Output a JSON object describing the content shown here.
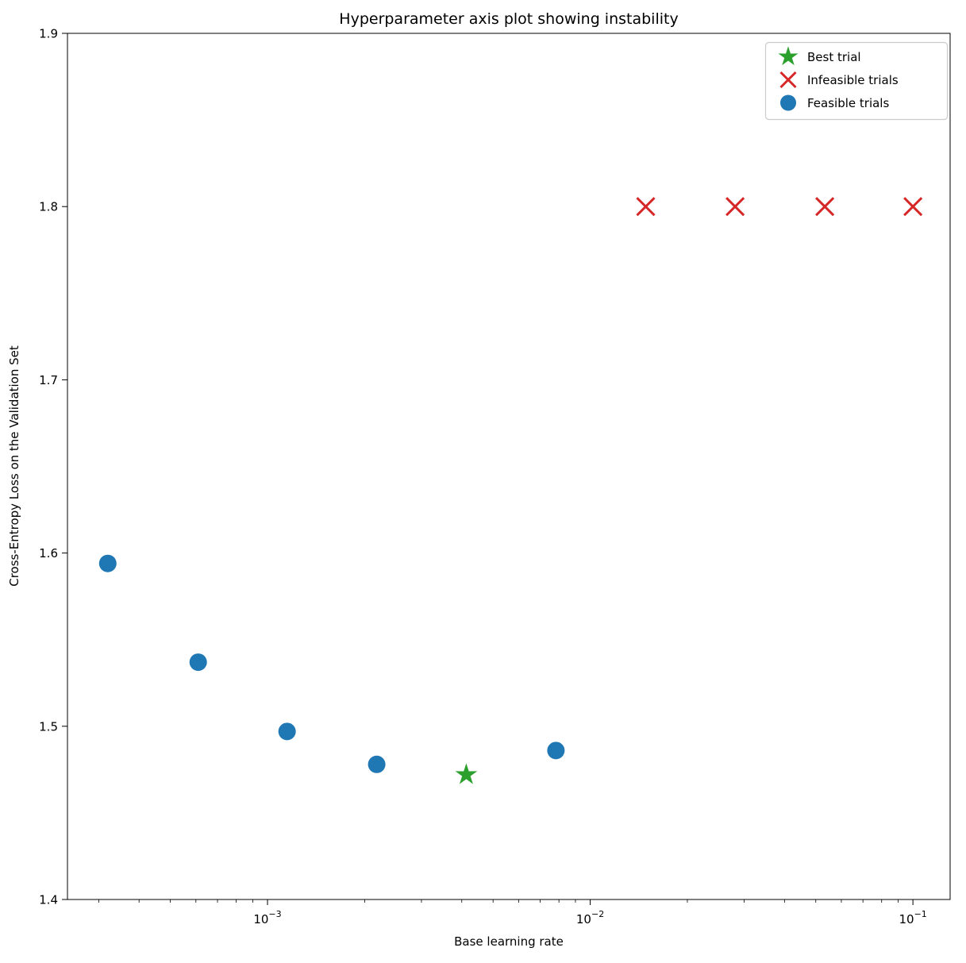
{
  "title": "Hyperparameter axis plot showing instability",
  "axes": {
    "x": {
      "label": "Base learning rate",
      "scale": "log",
      "min": 0.00024,
      "max": 0.1304,
      "major_ticks": [
        0.001,
        0.01,
        0.1
      ]
    },
    "y": {
      "label": "Cross-Entropy Loss on the Validation Set",
      "scale": "linear",
      "min": 1.4,
      "max": 1.9,
      "major_ticks": [
        1.4,
        1.5,
        1.6,
        1.7,
        1.8,
        1.9
      ]
    }
  },
  "legend": {
    "position": "upper right",
    "items": [
      {
        "label": "Best trial",
        "marker": "star",
        "color": "#2ca02c"
      },
      {
        "label": "Infeasible trials",
        "marker": "x",
        "color": "#d62728"
      },
      {
        "label": "Feasible trials",
        "marker": "circle",
        "color": "#1f77b4"
      }
    ]
  },
  "chart_data": {
    "type": "scatter",
    "title": "Hyperparameter axis plot showing instability",
    "xlabel": "Base learning rate",
    "ylabel": "Cross-Entropy Loss on the Validation Set",
    "xscale": "log",
    "yscale": "linear",
    "xlim": [
      0.00024,
      0.1304
    ],
    "ylim": [
      1.4,
      1.9
    ],
    "grid": false,
    "series": [
      {
        "name": "Feasible trials",
        "marker": "circle",
        "color": "#1f77b4",
        "points": [
          [
            0.00032,
            1.594
          ],
          [
            0.00061,
            1.537
          ],
          [
            0.00115,
            1.497
          ],
          [
            0.00218,
            1.478
          ],
          [
            0.00783,
            1.486
          ]
        ]
      },
      {
        "name": "Best trial",
        "marker": "star",
        "color": "#2ca02c",
        "points": [
          [
            0.00413,
            1.472
          ]
        ]
      },
      {
        "name": "Infeasible trials",
        "marker": "x",
        "color": "#d62728",
        "points": [
          [
            0.01486,
            1.8
          ],
          [
            0.02812,
            1.8
          ],
          [
            0.05333,
            1.8
          ],
          [
            0.1,
            1.8
          ]
        ]
      }
    ]
  }
}
